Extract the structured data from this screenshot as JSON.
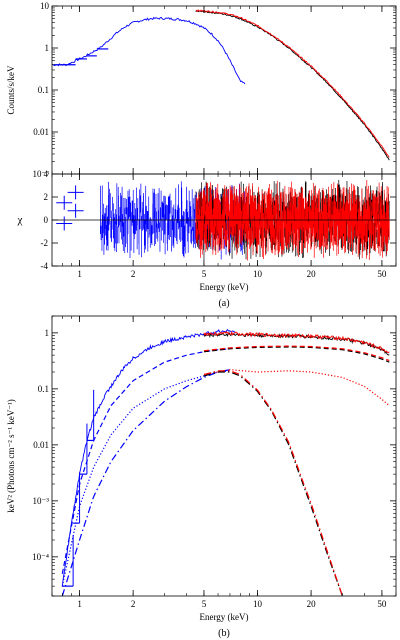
{
  "chart_data": [
    {
      "type": "line",
      "panel_label": "(a)",
      "xlabel": "Energy (keV)",
      "x_scale": "log",
      "xlim": [
        0.7,
        60
      ],
      "x_ticks": [
        1,
        2,
        5,
        10,
        20,
        50
      ],
      "x_tick_labels": [
        "1",
        "2",
        "5",
        "10",
        "20",
        "50"
      ],
      "top": {
        "ylabel": "Counts/s/keV",
        "y_scale": "log",
        "ylim": [
          0.001,
          10
        ],
        "y_ticks": [
          0.001,
          0.01,
          0.1,
          1,
          10
        ],
        "y_tick_labels": [
          "10⁻³",
          "0.01",
          "0.1",
          "1",
          "10"
        ],
        "series": [
          {
            "color": "#0000ff",
            "x": [
              0.7,
              0.75,
              0.85,
              0.95,
              1.05,
              1.15,
              1.3,
              1.45,
              1.6,
              1.8,
              2.0,
              2.2,
              2.5,
              2.8,
              3.2,
              3.6,
              4.0,
              4.5,
              5.0,
              5.5,
              6.0,
              6.5,
              7.0,
              7.5,
              8.0,
              8.5
            ],
            "y": [
              0.4,
              0.4,
              0.4,
              0.5,
              0.6,
              0.75,
              1.0,
              1.5,
              2.2,
              3.2,
              4.0,
              4.5,
              5.0,
              5.1,
              5.0,
              4.8,
              4.5,
              3.8,
              3.0,
              2.2,
              1.5,
              0.9,
              0.5,
              0.28,
              0.16,
              0.14
            ]
          },
          {
            "color": "#000000",
            "x": [
              4.5,
              5,
              6,
              7,
              8,
              10,
              12,
              15,
              20,
              25,
              30,
              40,
              50,
              55
            ],
            "y": [
              7.5,
              7.3,
              6.8,
              6.0,
              5.0,
              3.2,
              2.0,
              1.0,
              0.35,
              0.14,
              0.06,
              0.015,
              0.004,
              0.0022
            ]
          },
          {
            "color": "#ff0000",
            "x": [
              4.5,
              5,
              6,
              7,
              8,
              10,
              12,
              15,
              20,
              25,
              30,
              40,
              50,
              55
            ],
            "y": [
              7.8,
              7.6,
              7.1,
              6.3,
              5.3,
              3.4,
              2.1,
              1.05,
              0.37,
              0.15,
              0.065,
              0.016,
              0.0045,
              0.0025
            ]
          }
        ]
      },
      "bottom": {
        "ylabel": "χ",
        "ylim": [
          -4,
          4
        ],
        "y_ticks": [
          -4,
          -2,
          0,
          2,
          4
        ],
        "y_tick_labels": [
          "-4",
          "-2",
          "0",
          "2",
          "4"
        ],
        "zero_line": true
      }
    },
    {
      "type": "line",
      "panel_label": "(b)",
      "xlabel": "Energy (keV)",
      "ylabel": "keV² (Photons cm⁻² s⁻¹ keV⁻¹)",
      "x_scale": "log",
      "y_scale": "log",
      "xlim": [
        0.7,
        60
      ],
      "ylim": [
        2e-05,
        2
      ],
      "x_ticks": [
        1,
        2,
        5,
        10,
        20,
        50
      ],
      "x_tick_labels": [
        "1",
        "2",
        "5",
        "10",
        "20",
        "50"
      ],
      "y_ticks": [
        0.0001,
        0.001,
        0.01,
        0.1,
        1
      ],
      "y_tick_labels": [
        "10⁻⁴",
        "10⁻³",
        "0.01",
        "0.1",
        "1"
      ],
      "series": [
        {
          "style": "data",
          "color": "#0000ff",
          "x": [
            0.8,
            0.9,
            1.0,
            1.1,
            1.2,
            1.4,
            1.6,
            1.8,
            2.0,
            2.5,
            3.0,
            4.0,
            5.0,
            6.0,
            7.0,
            7.5
          ],
          "y": [
            3e-05,
            0.0004,
            0.003,
            0.012,
            0.03,
            0.08,
            0.15,
            0.25,
            0.35,
            0.55,
            0.7,
            0.85,
            0.95,
            1.05,
            1.1,
            1.0
          ]
        },
        {
          "style": "data",
          "color": "#000000",
          "x": [
            5,
            6,
            7,
            8,
            10,
            15,
            20,
            30,
            40,
            50,
            55
          ],
          "y": [
            0.9,
            0.92,
            0.95,
            0.92,
            0.9,
            0.88,
            0.85,
            0.78,
            0.65,
            0.5,
            0.42
          ]
        },
        {
          "style": "data",
          "color": "#ff0000",
          "x": [
            5,
            6,
            7,
            8,
            10,
            15,
            20,
            30,
            40,
            50,
            55
          ],
          "y": [
            0.95,
            0.97,
            0.98,
            0.96,
            0.93,
            0.9,
            0.88,
            0.8,
            0.67,
            0.52,
            0.44
          ]
        },
        {
          "style": "dashed",
          "color": "#0000ff",
          "x": [
            0.8,
            1,
            1.2,
            1.5,
            2,
            3,
            4,
            5,
            6,
            7
          ],
          "y": [
            5e-05,
            0.002,
            0.012,
            0.05,
            0.14,
            0.3,
            0.4,
            0.46,
            0.5,
            0.52
          ]
        },
        {
          "style": "dashed",
          "color": "#000000",
          "x": [
            5,
            7,
            10,
            15,
            20,
            30,
            40,
            50,
            55
          ],
          "y": [
            0.46,
            0.52,
            0.55,
            0.56,
            0.55,
            0.5,
            0.42,
            0.34,
            0.3
          ]
        },
        {
          "style": "dashed",
          "color": "#ff0000",
          "x": [
            5,
            7,
            10,
            15,
            20,
            30,
            40,
            50,
            55
          ],
          "y": [
            0.48,
            0.54,
            0.57,
            0.58,
            0.57,
            0.52,
            0.44,
            0.36,
            0.32
          ]
        },
        {
          "style": "dotted",
          "color": "#0000ff",
          "x": [
            0.8,
            1,
            1.2,
            1.5,
            2,
            3,
            4,
            5,
            6,
            7
          ],
          "y": [
            3e-05,
            0.0008,
            0.004,
            0.015,
            0.045,
            0.1,
            0.14,
            0.17,
            0.2,
            0.21
          ]
        },
        {
          "style": "dotted",
          "color": "#ff0000",
          "x": [
            5,
            7,
            10,
            15,
            20,
            30,
            40,
            50,
            55
          ],
          "y": [
            0.18,
            0.22,
            0.2,
            0.21,
            0.2,
            0.16,
            0.11,
            0.065,
            0.05
          ]
        },
        {
          "style": "dashdot",
          "color": "#0000ff",
          "x": [
            0.8,
            1,
            1.2,
            1.5,
            2,
            3,
            4,
            5,
            6,
            7
          ],
          "y": [
            2e-05,
            0.0002,
            0.0012,
            0.005,
            0.018,
            0.06,
            0.11,
            0.16,
            0.2,
            0.22
          ]
        },
        {
          "style": "dashdot",
          "color": "#000000",
          "x": [
            5,
            6,
            7,
            8,
            10,
            12,
            15,
            18,
            20,
            25,
            30
          ],
          "y": [
            0.17,
            0.2,
            0.2,
            0.17,
            0.09,
            0.04,
            0.01,
            0.002,
            0.0008,
            0.0001,
            2e-05
          ]
        },
        {
          "style": "dashdot",
          "color": "#ff0000",
          "x": [
            5,
            6,
            7,
            8,
            10,
            12,
            15,
            18,
            20,
            25,
            30
          ],
          "y": [
            0.18,
            0.21,
            0.21,
            0.18,
            0.095,
            0.042,
            0.011,
            0.0022,
            0.0009,
            0.00011,
            2e-05
          ]
        }
      ]
    }
  ]
}
